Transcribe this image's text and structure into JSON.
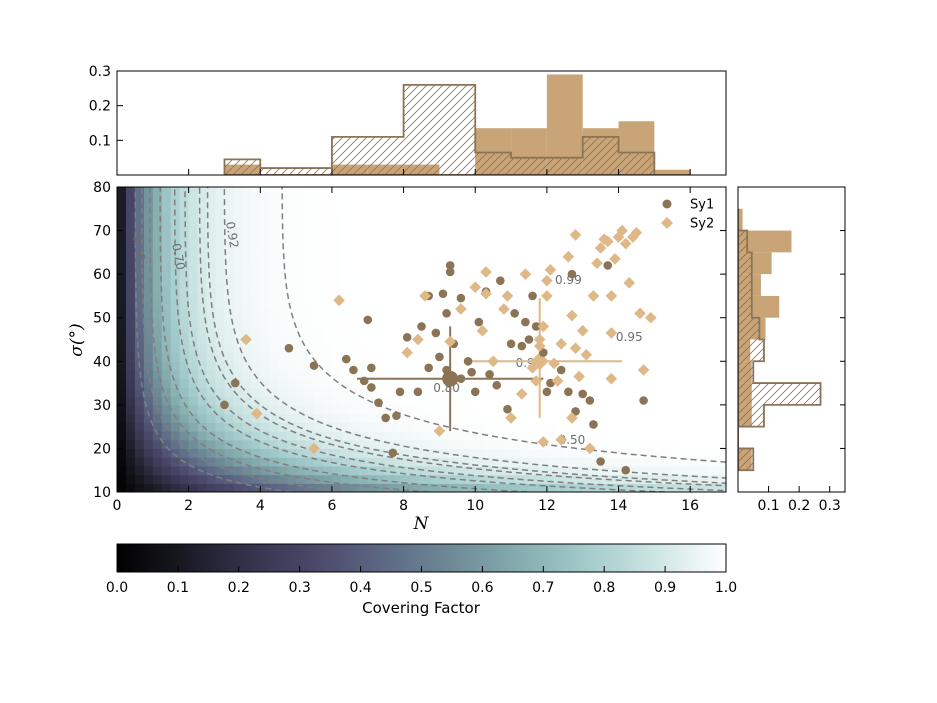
{
  "colors": {
    "sy1": "#8b7355",
    "sy2": "#deb887",
    "hist_fill": "#c9a476",
    "hist_outline": "#8b7355",
    "contour": "#7f7f7f",
    "cmap": [
      "#000000",
      "#1a1a24",
      "#36344e",
      "#4c4a6c",
      "#5e6a86",
      "#6f8c98",
      "#86aeaf",
      "#a4cccc",
      "#cfe6e5",
      "#ffffff"
    ]
  },
  "chart_data": [
    {
      "id": "main",
      "type": "scatter",
      "xlabel": "N",
      "ylabel": "σ(°)",
      "xlim": [
        0,
        17
      ],
      "ylim": [
        10,
        80
      ],
      "xticks": [
        "0",
        "2",
        "4",
        "6",
        "8",
        "10",
        "12",
        "14",
        "16"
      ],
      "yticks": [
        "10",
        "20",
        "30",
        "40",
        "50",
        "60",
        "70",
        "80"
      ],
      "legend": {
        "placement": "top-right",
        "entries": [
          "Sy1",
          "Sy2"
        ]
      },
      "contours": [
        {
          "level": 0.4,
          "label": "0.40",
          "label_at": [
            0.6,
            66
          ]
        },
        {
          "level": 0.5,
          "label": "0.50",
          "label_at": [
            12.7,
            21.8
          ]
        },
        {
          "level": 0.7,
          "label": "0.70",
          "label_at": [
            1.7,
            64
          ]
        },
        {
          "level": 0.8,
          "label": "0.80",
          "label_at": [
            9.2,
            33.8
          ]
        },
        {
          "level": 0.9,
          "label": "0.90",
          "label_at": [
            11.5,
            39.5
          ]
        },
        {
          "level": 0.92,
          "label": "0.92",
          "label_at": [
            3.2,
            69
          ]
        },
        {
          "level": 0.95,
          "label": "0.95",
          "label_at": [
            14.3,
            45.5
          ]
        },
        {
          "level": 0.99,
          "label": "0.99",
          "label_at": [
            12.6,
            58.5
          ]
        },
        {
          "level": 0.6,
          "label": "",
          "label_at": null
        },
        {
          "level": 0.85,
          "label": "",
          "label_at": null
        }
      ],
      "series": [
        {
          "name": "Sy1",
          "marker": "circle",
          "points": [
            [
              3.0,
              30.0
            ],
            [
              3.3,
              35.0
            ],
            [
              4.8,
              43.0
            ],
            [
              5.5,
              39.0
            ],
            [
              6.4,
              40.5
            ],
            [
              6.6,
              38.0
            ],
            [
              6.9,
              35.5
            ],
            [
              7.0,
              49.5
            ],
            [
              7.1,
              38.5
            ],
            [
              7.1,
              34.0
            ],
            [
              7.3,
              30.5
            ],
            [
              7.5,
              27.0
            ],
            [
              7.7,
              19.0
            ],
            [
              7.8,
              27.5
            ],
            [
              7.9,
              33.0
            ],
            [
              8.1,
              45.5
            ],
            [
              8.4,
              33.0
            ],
            [
              8.5,
              48.0
            ],
            [
              8.7,
              38.5
            ],
            [
              8.9,
              46.5
            ],
            [
              9.1,
              55.5
            ],
            [
              9.2,
              51.0
            ],
            [
              9.3,
              62.0
            ],
            [
              9.3,
              60.5
            ],
            [
              9.0,
              41.0
            ],
            [
              9.2,
              38.0
            ],
            [
              9.4,
              44.0
            ],
            [
              9.6,
              54.5
            ],
            [
              9.6,
              36.0
            ],
            [
              9.8,
              40.0
            ],
            [
              9.9,
              37.5
            ],
            [
              10.0,
              33.0
            ],
            [
              10.1,
              49.0
            ],
            [
              10.4,
              37.0
            ],
            [
              10.6,
              34.5
            ],
            [
              10.7,
              58.5
            ],
            [
              10.9,
              29.0
            ],
            [
              11.0,
              44.0
            ],
            [
              11.1,
              51.0
            ],
            [
              11.3,
              43.5
            ],
            [
              11.5,
              45.0
            ],
            [
              11.6,
              55.0
            ],
            [
              11.7,
              48.0
            ],
            [
              11.9,
              42.0
            ],
            [
              12.0,
              33.0
            ],
            [
              12.1,
              35.0
            ],
            [
              12.4,
              38.0
            ],
            [
              12.6,
              33.0
            ],
            [
              12.8,
              28.5
            ],
            [
              13.0,
              32.5
            ],
            [
              13.2,
              31.0
            ],
            [
              13.3,
              25.5
            ],
            [
              13.5,
              17.0
            ],
            [
              13.7,
              62.0
            ],
            [
              14.2,
              15.0
            ],
            [
              14.7,
              31.0
            ],
            [
              12.7,
              60.0
            ],
            [
              10.3,
              56.0
            ],
            [
              8.7,
              55.0
            ],
            [
              11.4,
              49.0
            ]
          ]
        },
        {
          "name": "Sy2",
          "marker": "diamond",
          "points": [
            [
              3.6,
              45.0
            ],
            [
              3.9,
              28.0
            ],
            [
              5.5,
              20.0
            ],
            [
              6.2,
              54.0
            ],
            [
              8.1,
              42.0
            ],
            [
              8.4,
              45.0
            ],
            [
              8.6,
              55.0
            ],
            [
              9.0,
              24.0
            ],
            [
              9.3,
              44.5
            ],
            [
              9.6,
              52.0
            ],
            [
              10.0,
              57.0
            ],
            [
              10.2,
              47.0
            ],
            [
              10.3,
              55.5
            ],
            [
              10.3,
              60.5
            ],
            [
              10.5,
              40.0
            ],
            [
              10.8,
              52.0
            ],
            [
              10.9,
              55.0
            ],
            [
              11.0,
              27.0
            ],
            [
              11.3,
              32.5
            ],
            [
              11.6,
              38.5
            ],
            [
              11.8,
              45.0
            ],
            [
              11.8,
              43.5
            ],
            [
              11.9,
              48.0
            ],
            [
              12.0,
              58.5
            ],
            [
              12.0,
              55.0
            ],
            [
              12.1,
              61.0
            ],
            [
              12.2,
              39.5
            ],
            [
              12.3,
              35.5
            ],
            [
              12.4,
              44.0
            ],
            [
              12.4,
              22.0
            ],
            [
              12.6,
              64.0
            ],
            [
              12.7,
              50.5
            ],
            [
              12.7,
              27.0
            ],
            [
              12.8,
              69.0
            ],
            [
              12.9,
              36.5
            ],
            [
              13.0,
              47.0
            ],
            [
              13.1,
              41.5
            ],
            [
              13.3,
              55.0
            ],
            [
              13.4,
              62.5
            ],
            [
              13.5,
              66.0
            ],
            [
              13.6,
              68.0
            ],
            [
              13.7,
              67.5
            ],
            [
              13.8,
              55.0
            ],
            [
              13.8,
              46.5
            ],
            [
              13.8,
              36.0
            ],
            [
              13.9,
              63.5
            ],
            [
              14.0,
              68.5
            ],
            [
              14.1,
              70.0
            ],
            [
              14.2,
              67.0
            ],
            [
              14.3,
              58.0
            ],
            [
              14.4,
              68.5
            ],
            [
              14.5,
              69.5
            ],
            [
              14.6,
              51.0
            ],
            [
              14.7,
              38.0
            ],
            [
              14.9,
              50.0
            ],
            [
              13.2,
              20.0
            ],
            [
              11.9,
              21.5
            ],
            [
              11.4,
              60.0
            ],
            [
              12.8,
              43.0
            ],
            [
              11.7,
              35.5
            ]
          ]
        }
      ],
      "errorbars": [
        {
          "series": "Sy1",
          "x": 9.3,
          "y": 36.0,
          "xerr": [
            2.6,
            2.6
          ],
          "yerr": [
            12.0,
            12.0
          ]
        },
        {
          "series": "Sy2",
          "x": 11.8,
          "y": 40.0,
          "xerr": [
            2.0,
            2.3
          ],
          "yerr": [
            13.0,
            14.5
          ]
        }
      ]
    },
    {
      "id": "top-hist",
      "type": "bar",
      "xlim": [
        0,
        17
      ],
      "ylim": [
        0,
        0.3
      ],
      "yticks": [
        "0.1",
        "0.2",
        "0.3"
      ],
      "bin_edges": [
        3,
        4,
        5,
        6,
        7,
        8,
        9,
        10,
        11,
        12,
        13,
        14,
        15,
        16
      ],
      "series": [
        {
          "name": "Sy2",
          "style": "filled",
          "values": [
            0.03,
            0.0,
            0.0,
            0.03,
            0.03,
            0.03,
            0.0,
            0.135,
            0.135,
            0.29,
            0.135,
            0.155,
            0.015
          ]
        },
        {
          "name": "Sy1",
          "style": "hatched",
          "values": [
            0.045,
            0.02,
            0.02,
            0.11,
            0.11,
            0.26,
            0.26,
            0.065,
            0.05,
            0.05,
            0.11,
            0.065,
            0.0
          ]
        }
      ]
    },
    {
      "id": "right-hist",
      "type": "bar",
      "orientation": "horizontal",
      "ylim": [
        10,
        80
      ],
      "xlim": [
        0,
        0.35
      ],
      "xticks": [
        "0.1",
        "0.2",
        "0.3"
      ],
      "bin_edges": [
        15,
        20,
        25,
        30,
        35,
        40,
        45,
        50,
        55,
        60,
        65,
        70,
        75
      ],
      "series": [
        {
          "name": "Sy2",
          "style": "filled",
          "values": [
            0.045,
            0.0,
            0.045,
            0.045,
            0.045,
            0.04,
            0.09,
            0.135,
            0.075,
            0.11,
            0.175,
            0.015
          ]
        },
        {
          "name": "Sy1",
          "style": "hatched",
          "values": [
            0.05,
            0.0,
            0.085,
            0.27,
            0.05,
            0.085,
            0.07,
            0.045,
            0.045,
            0.045,
            0.03,
            0.0
          ]
        }
      ]
    },
    {
      "id": "colorbar",
      "type": "heatmap",
      "xlabel": "Covering Factor",
      "xlim": [
        0,
        1
      ],
      "xticks": [
        "0.0",
        "0.1",
        "0.2",
        "0.3",
        "0.4",
        "0.5",
        "0.6",
        "0.7",
        "0.8",
        "0.9",
        "1.0"
      ]
    }
  ]
}
